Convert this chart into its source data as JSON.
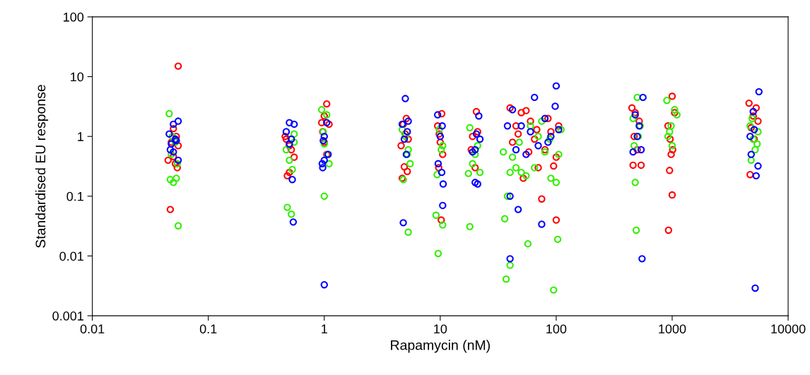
{
  "chart_data": {
    "type": "scatter",
    "xlabel": "Rapamycin (nM)",
    "ylabel": "Standardised EU response",
    "log": "xy",
    "xlim": [
      0.01,
      10000
    ],
    "xticks": [
      0.01,
      0.1,
      1,
      10,
      100,
      1000,
      10000
    ],
    "ylim": [
      0.001,
      100
    ],
    "yticks": [
      0.001,
      0.01,
      0.1,
      1,
      10,
      100
    ],
    "grid": false,
    "legend": false,
    "marker": "circle",
    "series": [
      {
        "color": "#ff0000",
        "x": [
          0.055,
          0.047,
          0.05,
          0.053,
          0.045,
          0.055,
          0.05,
          0.052,
          0.048,
          0.054,
          0.48,
          0.5,
          0.52,
          0.47,
          0.55,
          0.5,
          0.46,
          1.05,
          0.95,
          1.0,
          1.1,
          0.97,
          1.05,
          1.0,
          4.7,
          5.2,
          4.9,
          5.0,
          4.8,
          5.3,
          5.1,
          4.6,
          9.5,
          10.3,
          10,
          9.8,
          10.5,
          9.7,
          10.2,
          19,
          20.5,
          21,
          18.5,
          20,
          40,
          45,
          50,
          55,
          60,
          65,
          70,
          75,
          80,
          90,
          100,
          100,
          52,
          58,
          85,
          42,
          105,
          95,
          47,
          68,
          450,
          460,
          540,
          480,
          520,
          500,
          470,
          1000,
          950,
          1000,
          930,
          980,
          1050,
          920,
          1010,
          960,
          4600,
          4700,
          5300,
          5000,
          5500,
          4800,
          5100
        ],
        "values": [
          15,
          0.06,
          1.35,
          1.0,
          0.4,
          0.7,
          0.46,
          0.35,
          0.8,
          0.3,
          0.22,
          0.25,
          0.6,
          0.9,
          0.45,
          0.7,
          1.0,
          3.5,
          1.7,
          2.2,
          1.6,
          1.2,
          0.5,
          0.8,
          0.2,
          0.26,
          0.31,
          1.1,
          1.6,
          0.9,
          2.0,
          0.7,
          1.5,
          2.4,
          0.8,
          1.1,
          0.5,
          0.3,
          0.04,
          1.0,
          2.6,
          1.2,
          0.6,
          0.3,
          3.0,
          1.5,
          2.5,
          2.7,
          1.8,
          0.9,
          0.3,
          0.09,
          0.6,
          1.2,
          0.45,
          0.04,
          0.2,
          0.55,
          2.0,
          0.8,
          1.5,
          0.32,
          1.1,
          1.3,
          3.0,
          0.33,
          0.33,
          2.5,
          1.8,
          0.6,
          1.0,
          4.7,
          0.27,
          0.105,
          0.027,
          0.5,
          2.5,
          1.5,
          0.6,
          0.9,
          3.6,
          0.23,
          3.0,
          2.2,
          1.8,
          1.4,
          0.9
        ]
      },
      {
        "color": "#33ee00",
        "x": [
          0.046,
          0.055,
          0.047,
          0.05,
          0.053,
          0.048,
          0.052,
          0.054,
          0.049,
          0.48,
          0.52,
          0.55,
          0.5,
          0.53,
          0.47,
          0.55,
          1.0,
          0.95,
          1.05,
          1.1,
          1.0,
          0.98,
          1.07,
          5.3,
          4.8,
          5.0,
          5.3,
          5.5,
          4.7,
          5.2,
          9.2,
          9.6,
          10.5,
          9.4,
          10.2,
          9.8,
          10.5,
          18,
          17.5,
          18,
          19,
          21,
          20,
          22,
          36,
          37,
          40,
          38,
          35,
          40,
          45,
          50,
          55,
          57,
          65,
          70,
          80,
          90,
          95,
          103,
          100,
          105,
          60,
          48,
          42,
          75,
          88,
          110,
          480,
          490,
          500,
          460,
          530,
          510,
          470,
          900,
          1050,
          980,
          920,
          1000,
          1100,
          950,
          4800,
          5200,
          4700,
          5000,
          5500,
          4900,
          5400
        ],
        "values": [
          2.4,
          0.032,
          0.19,
          0.17,
          0.2,
          0.5,
          0.8,
          0.35,
          1.0,
          0.065,
          0.05,
          1.1,
          0.4,
          0.28,
          0.6,
          0.8,
          0.1,
          2.8,
          2.3,
          0.35,
          0.75,
          1.2,
          0.5,
          0.025,
          0.19,
          1.0,
          0.6,
          0.35,
          1.3,
          0.5,
          0.048,
          0.011,
          0.033,
          0.23,
          0.6,
          1.3,
          0.7,
          0.031,
          0.24,
          1.4,
          0.35,
          0.7,
          0.5,
          0.25,
          0.042,
          0.0041,
          0.007,
          0.1,
          0.55,
          0.25,
          0.3,
          0.25,
          0.22,
          0.016,
          0.3,
          1.0,
          0.55,
          0.2,
          0.0027,
          0.019,
          0.17,
          0.5,
          1.5,
          0.8,
          0.45,
          1.8,
          0.9,
          1.3,
          0.17,
          0.027,
          4.5,
          2.0,
          1.5,
          1.0,
          0.7,
          4.0,
          2.8,
          1.5,
          1.0,
          0.7,
          2.3,
          1.2,
          0.4,
          0.6,
          1.5,
          0.9,
          1.2,
          2.0,
          0.75
        ]
      },
      {
        "color": "#0000ff",
        "x": [
          0.055,
          0.05,
          0.046,
          0.048,
          0.052,
          0.055,
          0.05,
          0.047,
          0.053,
          0.54,
          0.53,
          0.5,
          0.55,
          0.47,
          0.5,
          0.52,
          1.0,
          0.97,
          1.0,
          1.05,
          1.0,
          0.98,
          1.08,
          0.96,
          4.8,
          5.0,
          5.3,
          4.7,
          5.1,
          4.9,
          5.2,
          10.5,
          10.3,
          10.6,
          9.5,
          10,
          9.6,
          10.4,
          20,
          21,
          21.5,
          20,
          19,
          20.5,
          22,
          40,
          40,
          47,
          65,
          75,
          100,
          98,
          42,
          50,
          55,
          60,
          70,
          80,
          90,
          105,
          38,
          45,
          85,
          550,
          540,
          560,
          460,
          480,
          520,
          500,
          5600,
          5200,
          5300,
          5500,
          4800,
          5000,
          5100,
          4700
        ],
        "values": [
          1.8,
          1.6,
          1.1,
          0.75,
          0.9,
          0.4,
          0.55,
          0.6,
          0.85,
          0.037,
          0.19,
          1.7,
          1.6,
          1.2,
          0.75,
          0.9,
          0.0033,
          0.3,
          0.4,
          1.7,
          1.0,
          0.85,
          0.5,
          0.35,
          0.036,
          4.3,
          1.8,
          1.6,
          0.5,
          0.9,
          1.2,
          0.07,
          0.25,
          0.16,
          2.3,
          1.0,
          0.35,
          1.5,
          0.17,
          0.16,
          2.2,
          0.6,
          0.55,
          1.1,
          0.9,
          0.1,
          0.009,
          0.06,
          4.5,
          0.034,
          7.0,
          3.2,
          2.8,
          1.5,
          0.5,
          1.2,
          0.7,
          2.0,
          1.0,
          1.3,
          1.5,
          0.6,
          0.8,
          0.009,
          0.6,
          4.5,
          0.55,
          2.3,
          1.5,
          1.0,
          5.6,
          0.0029,
          0.22,
          0.32,
          0.5,
          2.6,
          1.3,
          1.0
        ]
      }
    ]
  }
}
